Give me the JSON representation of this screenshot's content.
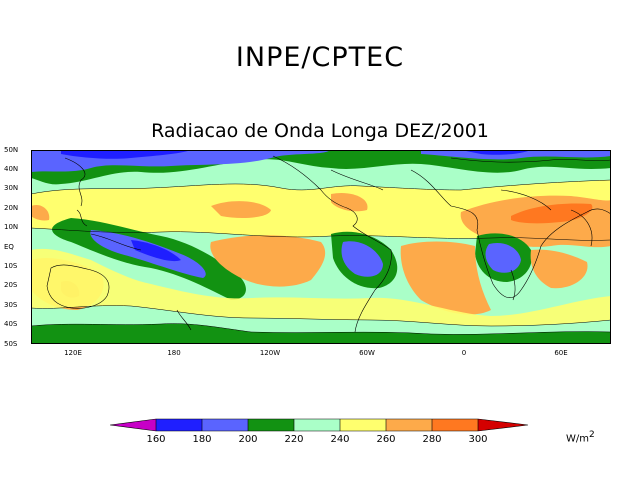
{
  "header": {
    "org_title": "INPE/CPTEC",
    "map_title": "Radiacao de Onda Longa DEZ/2001"
  },
  "map": {
    "lat_labels": [
      "50N",
      "40N",
      "30N",
      "20N",
      "10N",
      "EQ",
      "10S",
      "20S",
      "30S",
      "40S",
      "50S"
    ],
    "lon_labels": [
      "120E",
      "180",
      "120W",
      "60W",
      "0",
      "60E"
    ],
    "region": {
      "lon_range": [
        90,
        450
      ],
      "lat_range": [
        -50,
        50
      ]
    }
  },
  "legend": {
    "levels": [
      "160",
      "180",
      "200",
      "220",
      "240",
      "260",
      "280",
      "300"
    ],
    "colors": [
      "#c700c7",
      "#1f1fff",
      "#5a64ff",
      "#129212",
      "#aaffc8",
      "#ffff6e",
      "#fdaa4a",
      "#ff7820",
      "#d40000"
    ],
    "unit": "W/m",
    "unit_power": "2"
  }
}
